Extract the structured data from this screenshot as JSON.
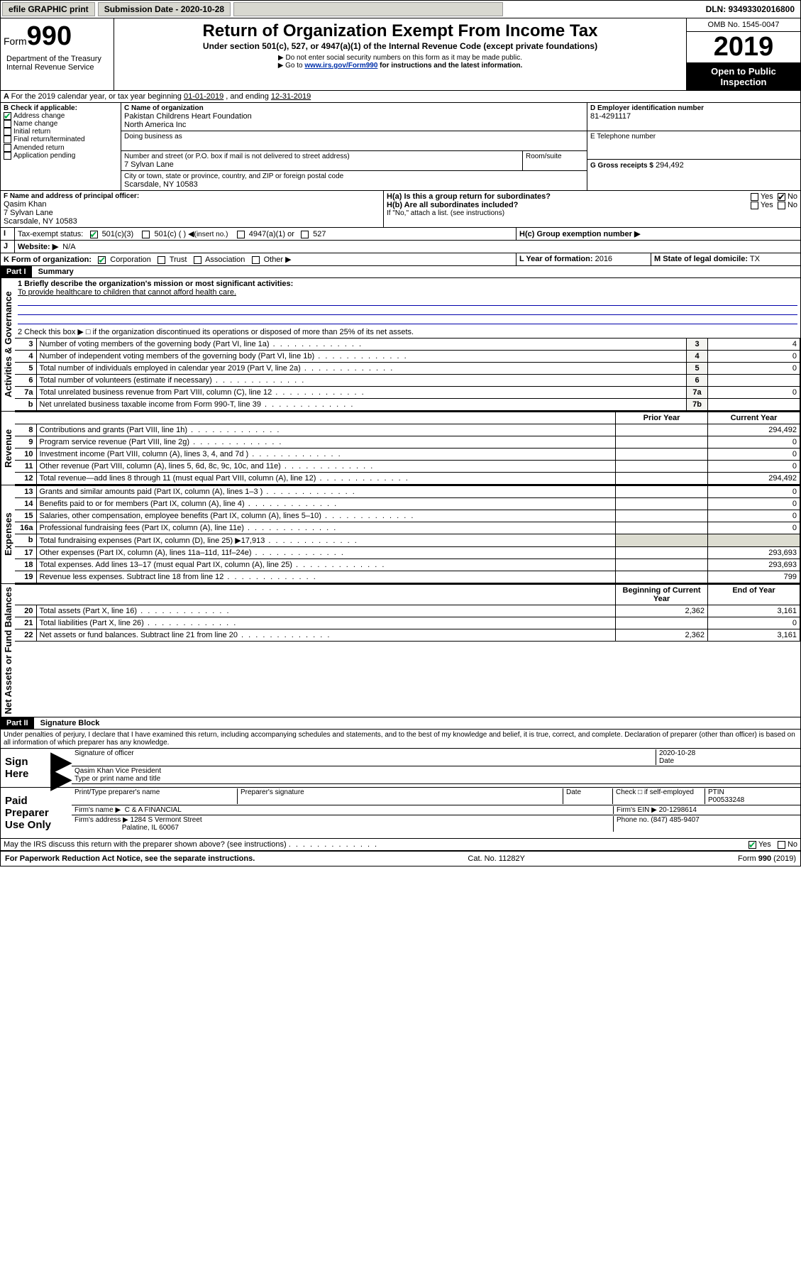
{
  "topbar": {
    "efile": "efile GRAPHIC print",
    "submission_label": "Submission Date - 2020-10-28",
    "dln_label": "DLN: 93493302016800"
  },
  "header": {
    "form_prefix": "Form",
    "form_number": "990",
    "title": "Return of Organization Exempt From Income Tax",
    "subtitle": "Under section 501(c), 527, or 4947(a)(1) of the Internal Revenue Code (except private foundations)",
    "note1": "Do not enter social security numbers on this form as it may be made public.",
    "note2_pre": "Go to ",
    "note2_link": "www.irs.gov/Form990",
    "note2_post": " for instructions and the latest information.",
    "dept": "Department of the Treasury\nInternal Revenue Service",
    "omb": "OMB No. 1545-0047",
    "year": "2019",
    "open": "Open to Public Inspection"
  },
  "lineA": {
    "text_pre": "For the 2019 calendar year, or tax year beginning ",
    "begin": "01-01-2019",
    "mid": " , and ending ",
    "end": "12-31-2019"
  },
  "boxB": {
    "label": "B Check if applicable:",
    "items": [
      {
        "label": "Address change",
        "checked": true
      },
      {
        "label": "Name change",
        "checked": false
      },
      {
        "label": "Initial return",
        "checked": false
      },
      {
        "label": "Final return/terminated",
        "checked": false
      },
      {
        "label": "Amended return",
        "checked": false
      },
      {
        "label": "Application pending",
        "checked": false
      }
    ]
  },
  "boxC": {
    "name_label": "C Name of organization",
    "name_line1": "Pakistan Childrens Heart Foundation",
    "name_line2": "North America Inc",
    "dba_label": "Doing business as",
    "street_label": "Number and street (or P.O. box if mail is not delivered to street address)",
    "room_label": "Room/suite",
    "street": "7 Sylvan Lane",
    "city_label": "City or town, state or province, country, and ZIP or foreign postal code",
    "city": "Scarsdale, NY  10583"
  },
  "boxD": {
    "label": "D Employer identification number",
    "value": "81-4291117"
  },
  "boxE": {
    "label": "E Telephone number",
    "value": ""
  },
  "boxG": {
    "label": "G Gross receipts $",
    "value": "294,492"
  },
  "boxF": {
    "label": "F  Name and address of principal officer:",
    "name": "Qasim Khan",
    "street": "7 Sylvan Lane",
    "city": "Scarsdale, NY  10583"
  },
  "boxH": {
    "a_label": "H(a)  Is this a group return for subordinates?",
    "b_label": "H(b)  Are all subordinates included?",
    "b_note": "If \"No,\" attach a list. (see instructions)",
    "c_label": "H(c)  Group exemption number ▶",
    "yes": "Yes",
    "no": "No"
  },
  "boxI": {
    "label": "Tax-exempt status:",
    "o501c3": "501(c)(3)",
    "o501c": "501(c) ( )",
    "insert": "(insert no.)",
    "o4947": "4947(a)(1) or",
    "o527": "527"
  },
  "boxJ": {
    "label": "Website: ▶",
    "value": "N/A"
  },
  "boxK": {
    "label": "K Form of organization:",
    "corp": "Corporation",
    "trust": "Trust",
    "assoc": "Association",
    "other": "Other ▶"
  },
  "boxL": {
    "label": "L Year of formation:",
    "value": "2016"
  },
  "boxM": {
    "label": "M State of legal domicile:",
    "value": "TX"
  },
  "part1": {
    "hdr": "Part I",
    "title": "Summary",
    "q1_label": "1  Briefly describe the organization's mission or most significant activities:",
    "q1_answer": "To provide healthcare to children that cannot afford health care.",
    "q2": "2   Check this box ▶ □  if the organization discontinued its operations or disposed of more than 25% of its net assets.",
    "vert_gov": "Activities & Governance",
    "vert_rev": "Revenue",
    "vert_exp": "Expenses",
    "vert_net": "Net Assets or Fund Balances",
    "col_prior": "Prior Year",
    "col_current": "Current Year",
    "col_begin": "Beginning of Current Year",
    "col_end": "End of Year",
    "rows_gov": [
      {
        "n": "3",
        "label": "Number of voting members of the governing body (Part VI, line 1a)",
        "box": "3",
        "val": "4"
      },
      {
        "n": "4",
        "label": "Number of independent voting members of the governing body (Part VI, line 1b)",
        "box": "4",
        "val": "0"
      },
      {
        "n": "5",
        "label": "Total number of individuals employed in calendar year 2019 (Part V, line 2a)",
        "box": "5",
        "val": "0"
      },
      {
        "n": "6",
        "label": "Total number of volunteers (estimate if necessary)",
        "box": "6",
        "val": ""
      },
      {
        "n": "7a",
        "label": "Total unrelated business revenue from Part VIII, column (C), line 12",
        "box": "7a",
        "val": "0"
      },
      {
        "n": "b",
        "label": "Net unrelated business taxable income from Form 990-T, line 39",
        "box": "7b",
        "val": ""
      }
    ],
    "rows_rev": [
      {
        "n": "8",
        "label": "Contributions and grants (Part VIII, line 1h)",
        "prior": "",
        "curr": "294,492"
      },
      {
        "n": "9",
        "label": "Program service revenue (Part VIII, line 2g)",
        "prior": "",
        "curr": "0"
      },
      {
        "n": "10",
        "label": "Investment income (Part VIII, column (A), lines 3, 4, and 7d )",
        "prior": "",
        "curr": "0"
      },
      {
        "n": "11",
        "label": "Other revenue (Part VIII, column (A), lines 5, 6d, 8c, 9c, 10c, and 11e)",
        "prior": "",
        "curr": "0"
      },
      {
        "n": "12",
        "label": "Total revenue—add lines 8 through 11 (must equal Part VIII, column (A), line 12)",
        "prior": "",
        "curr": "294,492"
      }
    ],
    "rows_exp": [
      {
        "n": "13",
        "label": "Grants and similar amounts paid (Part IX, column (A), lines 1–3 )",
        "prior": "",
        "curr": "0"
      },
      {
        "n": "14",
        "label": "Benefits paid to or for members (Part IX, column (A), line 4)",
        "prior": "",
        "curr": "0"
      },
      {
        "n": "15",
        "label": "Salaries, other compensation, employee benefits (Part IX, column (A), lines 5–10)",
        "prior": "",
        "curr": "0"
      },
      {
        "n": "16a",
        "label": "Professional fundraising fees (Part IX, column (A), line 11e)",
        "prior": "",
        "curr": "0"
      },
      {
        "n": "b",
        "label": "Total fundraising expenses (Part IX, column (D), line 25) ▶17,913",
        "prior": "GREY",
        "curr": "GREY"
      },
      {
        "n": "17",
        "label": "Other expenses (Part IX, column (A), lines 11a–11d, 11f–24e)",
        "prior": "",
        "curr": "293,693"
      },
      {
        "n": "18",
        "label": "Total expenses. Add lines 13–17 (must equal Part IX, column (A), line 25)",
        "prior": "",
        "curr": "293,693"
      },
      {
        "n": "19",
        "label": "Revenue less expenses. Subtract line 18 from line 12",
        "prior": "",
        "curr": "799"
      }
    ],
    "rows_net": [
      {
        "n": "20",
        "label": "Total assets (Part X, line 16)",
        "prior": "2,362",
        "curr": "3,161"
      },
      {
        "n": "21",
        "label": "Total liabilities (Part X, line 26)",
        "prior": "",
        "curr": "0"
      },
      {
        "n": "22",
        "label": "Net assets or fund balances. Subtract line 21 from line 20",
        "prior": "2,362",
        "curr": "3,161"
      }
    ]
  },
  "part2": {
    "hdr": "Part II",
    "title": "Signature Block",
    "perjury": "Under penalties of perjury, I declare that I have examined this return, including accompanying schedules and statements, and to the best of my knowledge and belief, it is true, correct, and complete. Declaration of preparer (other than officer) is based on all information of which preparer has any knowledge.",
    "sign_here": "Sign Here",
    "sig_officer": "Signature of officer",
    "date_label": "Date",
    "date_val": "2020-10-28",
    "officer_name": "Qasim Khan  Vice President",
    "type_name": "Type or print name and title",
    "paid": "Paid Preparer Use Only",
    "print_name_label": "Print/Type preparer's name",
    "prep_sig_label": "Preparer's signature",
    "check_self": "Check □ if self-employed",
    "ptin_label": "PTIN",
    "ptin": "P00533248",
    "firm_name_label": "Firm's name    ▶",
    "firm_name": "C & A FINANCIAL",
    "firm_ein_label": "Firm's EIN ▶",
    "firm_ein": "20-1298614",
    "firm_addr_label": "Firm's address ▶",
    "firm_addr1": "1284 S Vermont Street",
    "firm_addr2": "Palatine, IL  60067",
    "phone_label": "Phone no.",
    "phone": "(847) 485-9407",
    "discuss": "May the IRS discuss this return with the preparer shown above? (see instructions)",
    "yes": "Yes",
    "no": "No"
  },
  "footer": {
    "left": "For Paperwork Reduction Act Notice, see the separate instructions.",
    "mid": "Cat. No. 11282Y",
    "right": "Form 990 (2019)"
  }
}
